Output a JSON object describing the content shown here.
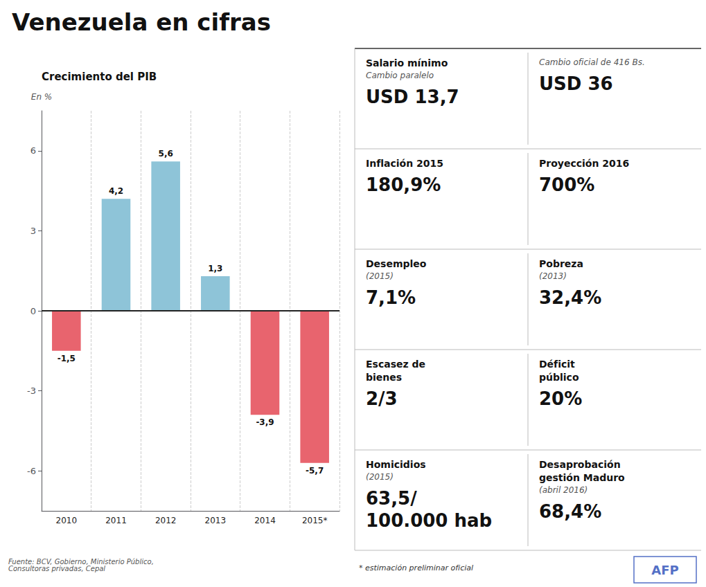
{
  "chart_data": {
    "type": "bar",
    "title": "Venezuela en cifras",
    "subtitle": "Crecimiento del PIB",
    "ylabel": "En %",
    "categories": [
      "2010",
      "2011",
      "2012",
      "2013",
      "2014",
      "2015*"
    ],
    "values": [
      -1.5,
      4.2,
      5.6,
      1.3,
      -3.9,
      -5.7
    ],
    "value_labels": [
      "-1,5",
      "4,2",
      "5,6",
      "1,3",
      "-3,9",
      "-5,7"
    ],
    "colors": [
      "#e8646e",
      "#8ec4d8",
      "#8ec4d8",
      "#8ec4d8",
      "#e8646e",
      "#e8646e"
    ],
    "ylim": [
      -7.5,
      7.5
    ],
    "yticks": [
      -6,
      -3,
      0,
      3,
      6
    ],
    "grid": true,
    "data_labels": true,
    "annotations": [
      {
        "heading": [
          "Salario mínimo"
        ],
        "figure": [
          "USD 13,7"
        ],
        "note": [
          "Cambio paralelo"
        ]
      },
      {
        "figure": [
          "USD 36"
        ],
        "note": [
          "Cambio oficial de 416 Bs."
        ]
      },
      {
        "heading": [
          "Inflación 2015"
        ],
        "figure": [
          "180,9%"
        ]
      },
      {
        "heading": [
          "Proyección 2016"
        ],
        "figure": [
          "700%"
        ]
      },
      {
        "heading": [
          "Desempleo"
        ],
        "note": [
          "(2015)"
        ],
        "figure": [
          "7,1%"
        ]
      },
      {
        "heading": [
          "Pobreza"
        ],
        "note": [
          "(2013)"
        ],
        "figure": [
          "32,4%"
        ]
      },
      {
        "heading": [
          "Escasez de",
          "bienes"
        ],
        "figure": [
          "2/3"
        ]
      },
      {
        "heading": [
          "Déficit",
          "público"
        ],
        "figure": [
          "20%"
        ]
      },
      {
        "heading": [
          "Homicidios"
        ],
        "note": [
          "(2015)"
        ],
        "figure": [
          "63,5/",
          "100.000 hab"
        ]
      },
      {
        "heading": [
          "Desaprobación",
          "gestión Maduro"
        ],
        "note": [
          "(abril 2016)"
        ],
        "figure": [
          "68,4%"
        ]
      },
      "Fuente: BCV, Gobierno, Ministerio Público,\nConsultoras privadas, Cepal",
      "* estimación preliminar oficial",
      "AFP"
    ]
  }
}
